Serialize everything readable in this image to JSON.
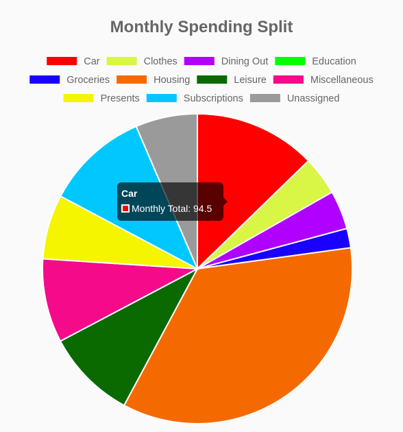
{
  "chart_data": {
    "type": "pie",
    "title": "Monthly Spending Split",
    "series_label": "Monthly Total",
    "categories": [
      "Car",
      "Clothes",
      "Dining Out",
      "Education",
      "Groceries",
      "Housing",
      "Leisure",
      "Miscellaneous",
      "Presents",
      "Subscriptions",
      "Unassigned"
    ],
    "values": [
      94.5,
      30,
      30,
      0,
      15,
      260,
      70,
      65,
      50,
      80,
      48
    ],
    "colors": [
      "#ff0000",
      "#d9f545",
      "#b000ff",
      "#00ff00",
      "#1a00ff",
      "#f56a00",
      "#0a6a00",
      "#f50a8a",
      "#f5f500",
      "#00c8ff",
      "#9a9a9a"
    ],
    "legend_position": "top",
    "start": "top, clockwise"
  },
  "tooltip": {
    "title": "Car",
    "label": "Monthly Total: 94.5",
    "swatch_color": "#ff0000"
  }
}
